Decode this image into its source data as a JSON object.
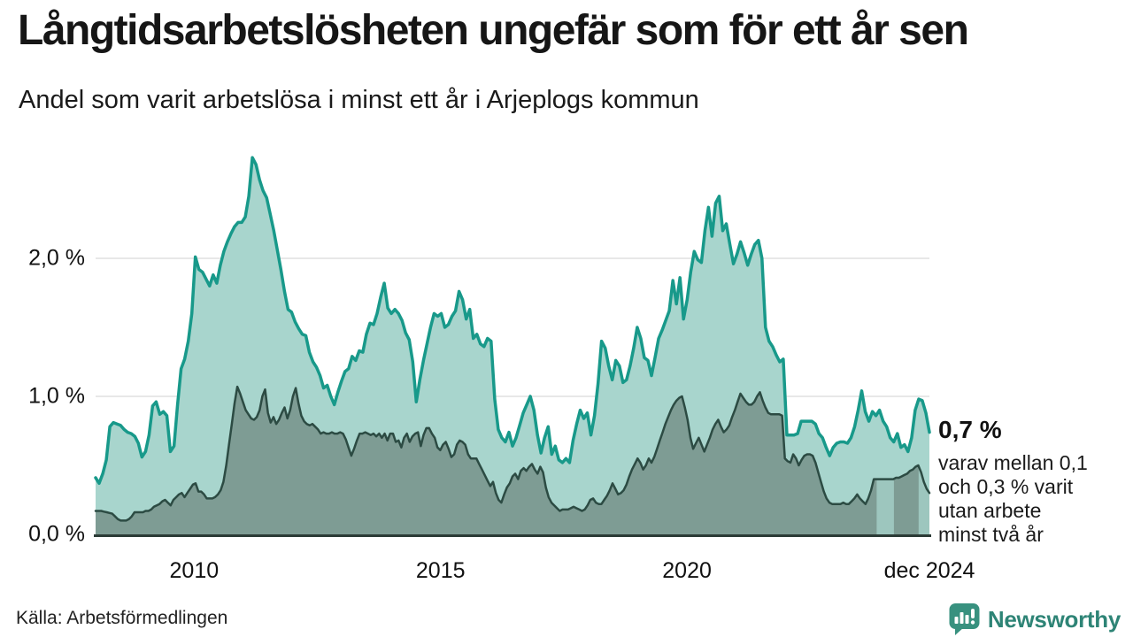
{
  "header": {
    "title": "Långtidsarbetslösheten ungefär som för ett år sen",
    "subtitle": "Andel som varit arbetslösa i minst ett år i Arjeplogs kommun"
  },
  "annotation": {
    "value": "0,7 %",
    "lines": [
      "varav mellan 0,1",
      "och 0,3 % varit",
      "utan arbete",
      "minst två år"
    ]
  },
  "footer": {
    "source": "Källa: Arbetsförmedlingen",
    "brand": "Newsworthy",
    "brand_color": "#2e8476",
    "brand_icon_color": "#38917f"
  },
  "chart_data": {
    "type": "area",
    "title": "Långtidsarbetslösheten ungefär som för ett år sen",
    "subtitle": "Andel som varit arbetslösa i minst ett år i Arjeplogs kommun",
    "unit": "%",
    "grid": true,
    "legend": false,
    "grid_color": "#e1e1e1",
    "axis_color": "#2b3b36",
    "uncertainty_fill": "#9dc6be",
    "ylim": [
      0,
      2.9
    ],
    "x_axis": {
      "start_year": 2008.0,
      "end_year": 2024.92,
      "ticks": [
        {
          "label": "2010",
          "year": 2010.0
        },
        {
          "label": "2015",
          "year": 2015.0
        },
        {
          "label": "2020",
          "year": 2020.0
        },
        {
          "label": "dec 2024",
          "year": 2024.92
        }
      ]
    },
    "y_axis": {
      "ticks": [
        {
          "label": "0,0 %",
          "value": 0.0
        },
        {
          "label": "1,0 %",
          "value": 1.0
        },
        {
          "label": "2,0 %",
          "value": 2.0
        }
      ]
    },
    "end_label": {
      "text": "0,7 %",
      "value": 0.74
    },
    "uncertainty_bands": [
      {
        "from_year": 2023.85,
        "to_year": 2024.2
      },
      {
        "from_year": 2024.7,
        "to_year": 2024.92
      }
    ],
    "series": [
      {
        "name": "arbetslösa minst ett år",
        "line_color": "#18998a",
        "fill_color": "#a8d5cd",
        "line_width": 3.5,
        "values": [
          0.41,
          0.37,
          0.44,
          0.54,
          0.78,
          0.81,
          0.8,
          0.79,
          0.76,
          0.74,
          0.73,
          0.71,
          0.66,
          0.56,
          0.6,
          0.72,
          0.93,
          0.96,
          0.87,
          0.89,
          0.86,
          0.6,
          0.64,
          0.94,
          1.2,
          1.27,
          1.4,
          1.6,
          2.01,
          1.92,
          1.9,
          1.85,
          1.8,
          1.88,
          1.82,
          1.95,
          2.05,
          2.12,
          2.18,
          2.23,
          2.26,
          2.26,
          2.3,
          2.45,
          2.73,
          2.68,
          2.57,
          2.49,
          2.44,
          2.32,
          2.2,
          2.06,
          1.92,
          1.76,
          1.63,
          1.61,
          1.54,
          1.49,
          1.45,
          1.44,
          1.32,
          1.25,
          1.21,
          1.15,
          1.06,
          1.08,
          1.0,
          0.94,
          1.03,
          1.11,
          1.18,
          1.2,
          1.29,
          1.26,
          1.33,
          1.32,
          1.45,
          1.53,
          1.52,
          1.6,
          1.72,
          1.82,
          1.64,
          1.6,
          1.63,
          1.6,
          1.55,
          1.46,
          1.41,
          1.25,
          0.96,
          1.12,
          1.26,
          1.38,
          1.5,
          1.6,
          1.58,
          1.6,
          1.5,
          1.52,
          1.58,
          1.62,
          1.76,
          1.7,
          1.56,
          1.63,
          1.42,
          1.45,
          1.38,
          1.36,
          1.42,
          1.4,
          0.98,
          0.76,
          0.7,
          0.67,
          0.74,
          0.64,
          0.7,
          0.79,
          0.88,
          0.94,
          1.0,
          0.9,
          0.72,
          0.59,
          0.7,
          0.78,
          0.58,
          0.64,
          0.54,
          0.52,
          0.55,
          0.52,
          0.68,
          0.8,
          0.9,
          0.84,
          0.88,
          0.72,
          0.86,
          1.09,
          1.4,
          1.35,
          1.22,
          1.12,
          1.26,
          1.22,
          1.1,
          1.12,
          1.22,
          1.35,
          1.5,
          1.42,
          1.28,
          1.26,
          1.15,
          1.28,
          1.42,
          1.48,
          1.55,
          1.62,
          1.84,
          1.67,
          1.86,
          1.56,
          1.7,
          1.9,
          2.05,
          1.99,
          1.97,
          2.2,
          2.37,
          2.16,
          2.4,
          2.45,
          2.2,
          2.25,
          2.1,
          1.96,
          2.03,
          2.12,
          2.04,
          1.95,
          2.03,
          2.1,
          2.13,
          2.0,
          1.5,
          1.4,
          1.36,
          1.3,
          1.25,
          1.27,
          0.72,
          0.72,
          0.72,
          0.73,
          0.82,
          0.82,
          0.82,
          0.82,
          0.8,
          0.73,
          0.7,
          0.63,
          0.57,
          0.63,
          0.66,
          0.67,
          0.67,
          0.66,
          0.7,
          0.78,
          0.9,
          1.04,
          0.89,
          0.82,
          0.89,
          0.86,
          0.9,
          0.82,
          0.78,
          0.7,
          0.67,
          0.73,
          0.63,
          0.65,
          0.6,
          0.7,
          0.9,
          0.98,
          0.97,
          0.88,
          0.74
        ]
      },
      {
        "name": "utan arbete minst två år",
        "line_color": "#2c4b43",
        "fill_color": "#7e9c94",
        "line_width": 2.5,
        "values": [
          0.17,
          0.17,
          0.17,
          0.165,
          0.16,
          0.155,
          0.15,
          0.13,
          0.11,
          0.1,
          0.1,
          0.1,
          0.11,
          0.13,
          0.16,
          0.16,
          0.16,
          0.16,
          0.17,
          0.17,
          0.18,
          0.2,
          0.21,
          0.22,
          0.24,
          0.25,
          0.23,
          0.21,
          0.25,
          0.27,
          0.29,
          0.3,
          0.27,
          0.3,
          0.33,
          0.36,
          0.37,
          0.31,
          0.31,
          0.29,
          0.26,
          0.26,
          0.26,
          0.27,
          0.29,
          0.32,
          0.38,
          0.5,
          0.65,
          0.8,
          0.95,
          1.07,
          1.02,
          0.96,
          0.9,
          0.87,
          0.84,
          0.83,
          0.85,
          0.9,
          1.0,
          1.05,
          0.88,
          0.81,
          0.85,
          0.8,
          0.83,
          0.88,
          0.92,
          0.84,
          0.9,
          1.0,
          1.06,
          0.95,
          0.86,
          0.82,
          0.8,
          0.79,
          0.8,
          0.78,
          0.76,
          0.73,
          0.74,
          0.73,
          0.73,
          0.74,
          0.73,
          0.73,
          0.74,
          0.73,
          0.69,
          0.63,
          0.57,
          0.62,
          0.68,
          0.73,
          0.73,
          0.74,
          0.73,
          0.72,
          0.73,
          0.71,
          0.73,
          0.7,
          0.73,
          0.68,
          0.73,
          0.73,
          0.67,
          0.68,
          0.63,
          0.7,
          0.73,
          0.67,
          0.71,
          0.73,
          0.74,
          0.64,
          0.72,
          0.77,
          0.77,
          0.73,
          0.7,
          0.63,
          0.61,
          0.65,
          0.67,
          0.62,
          0.56,
          0.58,
          0.65,
          0.68,
          0.67,
          0.65,
          0.58,
          0.55,
          0.55,
          0.55,
          0.51,
          0.47,
          0.43,
          0.39,
          0.35,
          0.38,
          0.3,
          0.25,
          0.23,
          0.29,
          0.34,
          0.37,
          0.42,
          0.44,
          0.4,
          0.46,
          0.48,
          0.46,
          0.49,
          0.51,
          0.47,
          0.44,
          0.49,
          0.45,
          0.34,
          0.27,
          0.23,
          0.21,
          0.19,
          0.17,
          0.18,
          0.18,
          0.18,
          0.19,
          0.2,
          0.19,
          0.18,
          0.17,
          0.18,
          0.21,
          0.25,
          0.26,
          0.23,
          0.22,
          0.22,
          0.25,
          0.28,
          0.32,
          0.37,
          0.33,
          0.29,
          0.3,
          0.32,
          0.36,
          0.42,
          0.47,
          0.51,
          0.55,
          0.52,
          0.47,
          0.5,
          0.55,
          0.52,
          0.56,
          0.62,
          0.68,
          0.74,
          0.8,
          0.85,
          0.9,
          0.94,
          0.97,
          0.99,
          1.0,
          0.92,
          0.83,
          0.7,
          0.62,
          0.66,
          0.7,
          0.65,
          0.6,
          0.65,
          0.7,
          0.76,
          0.8,
          0.83,
          0.78,
          0.74,
          0.76,
          0.79,
          0.85,
          0.9,
          0.96,
          1.02,
          0.99,
          0.96,
          0.94,
          0.94,
          0.96,
          1.0,
          1.03,
          0.97,
          0.92,
          0.88,
          0.87,
          0.87,
          0.87,
          0.87,
          0.86,
          0.55,
          0.53,
          0.52,
          0.58,
          0.55,
          0.5,
          0.54,
          0.57,
          0.58,
          0.58,
          0.57,
          0.52,
          0.45,
          0.38,
          0.31,
          0.26,
          0.23,
          0.22,
          0.22,
          0.22,
          0.22,
          0.23,
          0.22,
          0.22,
          0.24,
          0.26,
          0.29,
          0.26,
          0.24,
          0.22,
          0.26,
          0.32,
          0.4,
          0.4,
          0.4,
          0.4,
          0.4,
          0.4,
          0.4,
          0.4,
          0.41,
          0.41,
          0.42,
          0.43,
          0.44,
          0.46,
          0.47,
          0.49,
          0.5,
          0.45,
          0.38,
          0.33,
          0.3
        ]
      }
    ]
  }
}
